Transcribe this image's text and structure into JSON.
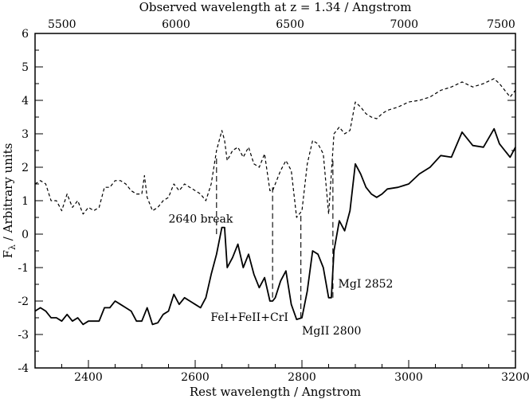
{
  "chart_data": {
    "type": "line",
    "xlabel": "Rest wavelength / Angstrom",
    "top_xlabel": "Observed wavelength at z = 1.34 / Angstrom",
    "ylabel_main": "F",
    "ylabel_sub": "λ",
    "ylabel_rest": " / Arbitrary units",
    "xlim": [
      2300,
      3200
    ],
    "ylim": [
      -4,
      6
    ],
    "x_ticks": [
      "2400",
      "2600",
      "2800",
      "3000",
      "3200"
    ],
    "y_ticks": [
      "-4",
      "-3",
      "-2",
      "-1",
      "0",
      "1",
      "2",
      "3",
      "4",
      "5",
      "6"
    ],
    "top_ticks": [
      "5500",
      "6000",
      "6500",
      "7000",
      "7500"
    ],
    "top_tick_rest_values": [
      2350.43,
      2564.1,
      2777.78,
      2991.45,
      3205.13
    ],
    "grid": false,
    "legend": "none",
    "series": [
      {
        "style": "dashed",
        "x": [
          2300,
          2310,
          2320,
          2330,
          2340,
          2350,
          2360,
          2370,
          2380,
          2390,
          2400,
          2410,
          2420,
          2430,
          2440,
          2450,
          2460,
          2470,
          2480,
          2490,
          2500,
          2505,
          2510,
          2520,
          2530,
          2540,
          2550,
          2560,
          2570,
          2580,
          2590,
          2600,
          2610,
          2620,
          2630,
          2640,
          2650,
          2655,
          2660,
          2670,
          2680,
          2690,
          2700,
          2710,
          2720,
          2730,
          2740,
          2745,
          2750,
          2760,
          2770,
          2780,
          2790,
          2800,
          2810,
          2820,
          2830,
          2840,
          2850,
          2860,
          2870,
          2880,
          2890,
          2900,
          2910,
          2920,
          2930,
          2940,
          2950,
          2960,
          2980,
          3000,
          3020,
          3040,
          3060,
          3080,
          3100,
          3120,
          3140,
          3160,
          3170,
          3190,
          3200
        ],
        "y": [
          1.5,
          1.6,
          1.5,
          1.0,
          1.0,
          0.7,
          1.2,
          0.8,
          1.0,
          0.6,
          0.8,
          0.7,
          0.8,
          1.4,
          1.4,
          1.6,
          1.6,
          1.5,
          1.3,
          1.2,
          1.2,
          1.75,
          1.1,
          0.7,
          0.8,
          1.0,
          1.1,
          1.5,
          1.3,
          1.5,
          1.4,
          1.3,
          1.2,
          1.0,
          1.5,
          2.5,
          3.1,
          2.8,
          2.2,
          2.5,
          2.6,
          2.3,
          2.6,
          2.1,
          2.0,
          2.4,
          1.3,
          1.3,
          1.5,
          1.9,
          2.2,
          1.9,
          0.5,
          0.7,
          2.1,
          2.8,
          2.7,
          2.4,
          0.6,
          3.0,
          3.2,
          3.0,
          3.1,
          3.95,
          3.8,
          3.6,
          3.5,
          3.45,
          3.6,
          3.7,
          3.8,
          3.95,
          4.0,
          4.1,
          4.3,
          4.4,
          4.55,
          4.4,
          4.5,
          4.65,
          4.5,
          4.1,
          4.3
        ]
      },
      {
        "style": "solid",
        "x": [
          2300,
          2310,
          2320,
          2330,
          2340,
          2350,
          2360,
          2370,
          2380,
          2390,
          2400,
          2410,
          2420,
          2430,
          2440,
          2450,
          2460,
          2470,
          2480,
          2490,
          2500,
          2510,
          2520,
          2530,
          2540,
          2550,
          2560,
          2570,
          2580,
          2590,
          2600,
          2610,
          2620,
          2630,
          2640,
          2650,
          2655,
          2660,
          2670,
          2680,
          2690,
          2700,
          2710,
          2720,
          2730,
          2740,
          2745,
          2750,
          2760,
          2770,
          2780,
          2790,
          2800,
          2810,
          2820,
          2830,
          2840,
          2850,
          2855,
          2860,
          2870,
          2880,
          2890,
          2900,
          2910,
          2920,
          2930,
          2940,
          2950,
          2960,
          2980,
          3000,
          3020,
          3040,
          3060,
          3080,
          3100,
          3120,
          3140,
          3160,
          3170,
          3190,
          3200
        ],
        "y": [
          -2.3,
          -2.2,
          -2.3,
          -2.5,
          -2.5,
          -2.6,
          -2.4,
          -2.6,
          -2.5,
          -2.7,
          -2.6,
          -2.6,
          -2.6,
          -2.2,
          -2.2,
          -2.0,
          -2.1,
          -2.2,
          -2.3,
          -2.6,
          -2.6,
          -2.2,
          -2.7,
          -2.65,
          -2.4,
          -2.3,
          -1.8,
          -2.1,
          -1.9,
          -2.0,
          -2.1,
          -2.2,
          -1.9,
          -1.2,
          -0.6,
          0.2,
          0.2,
          -1.0,
          -0.7,
          -0.3,
          -1.0,
          -0.6,
          -1.2,
          -1.6,
          -1.3,
          -2.0,
          -2.0,
          -1.9,
          -1.4,
          -1.1,
          -2.1,
          -2.55,
          -2.5,
          -1.7,
          -0.5,
          -0.6,
          -1.0,
          -1.9,
          -1.9,
          -0.5,
          0.4,
          0.1,
          0.7,
          2.1,
          1.8,
          1.4,
          1.2,
          1.1,
          1.2,
          1.35,
          1.4,
          1.5,
          1.8,
          2.0,
          2.35,
          2.3,
          3.05,
          2.65,
          2.6,
          3.15,
          2.7,
          2.3,
          2.6
        ]
      }
    ],
    "guides": [
      {
        "x": 2640,
        "y_from": 0.0,
        "y_to": 2.3
      },
      {
        "x": 2745,
        "y_from": -1.9,
        "y_to": 1.4
      },
      {
        "x": 2798,
        "y_from": -2.5,
        "y_to": 0.6
      },
      {
        "x": 2858,
        "y_from": -1.9,
        "y_to": 2.2
      }
    ],
    "annotations": [
      {
        "text": "2640 break",
        "x": 2550,
        "y": 0.35
      },
      {
        "text": "FeI+FeII+CrI",
        "x": 2629,
        "y": -2.6
      },
      {
        "text": "MgII 2800",
        "x": 2800,
        "y": -3.0
      },
      {
        "text": "MgI 2852",
        "x": 2868,
        "y": -1.6
      }
    ]
  }
}
